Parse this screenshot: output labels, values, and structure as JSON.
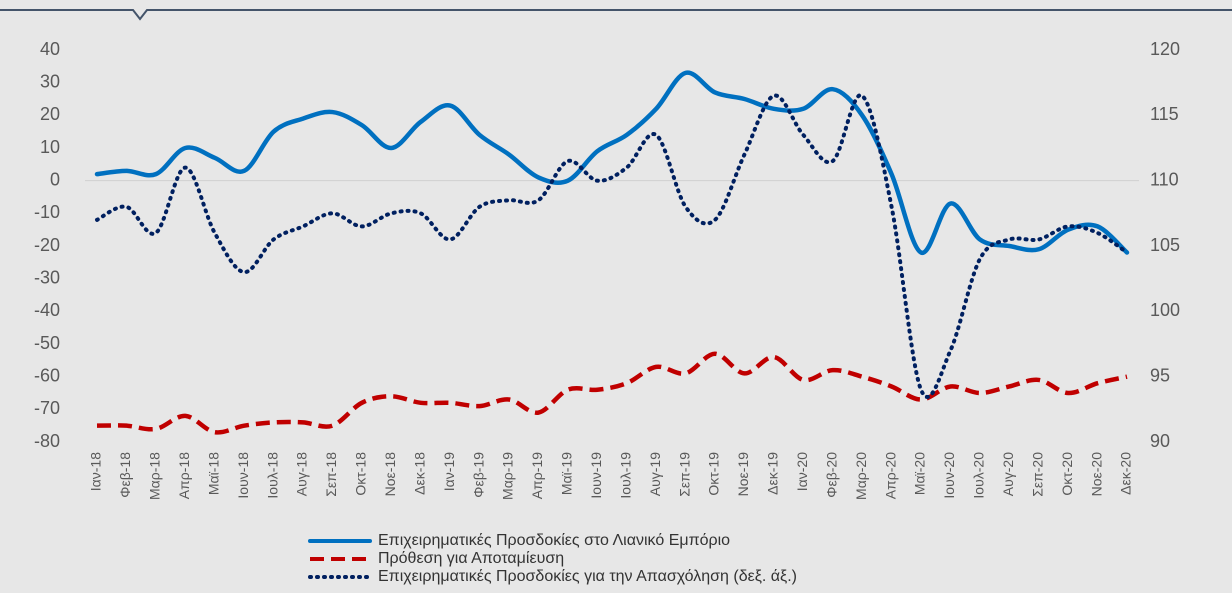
{
  "chart_data": {
    "type": "line",
    "categories": [
      "Ιαν-18",
      "Φεβ-18",
      "Μαρ-18",
      "Απρ-18",
      "Μαϊ-18",
      "Ιουν-18",
      "Ιουλ-18",
      "Αυγ-18",
      "Σεπ-18",
      "Οκτ-18",
      "Νοε-18",
      "Δεκ-18",
      "Ιαν-19",
      "Φεβ-19",
      "Μαρ-19",
      "Απρ-19",
      "Μαϊ-19",
      "Ιουν-19",
      "Ιουλ-19",
      "Αυγ-19",
      "Σεπ-19",
      "Οκτ-19",
      "Νοε-19",
      "Δεκ-19",
      "Ιαν-20",
      "Φεβ-20",
      "Μαρ-20",
      "Απρ-20",
      "Μαϊ-20",
      "Ιουν-20",
      "Ιουλ-20",
      "Αυγ-20",
      "Σεπ-20",
      "Οκτ-20",
      "Νοε-20",
      "Δεκ-20"
    ],
    "series": [
      {
        "name": "Επιχειρηματικές Προσδοκίες στο Λιανικό Εμπόριο",
        "color": "#0070c0",
        "style": "solid",
        "values": [
          2,
          3,
          2,
          10,
          7,
          3,
          15,
          19,
          21,
          17,
          10,
          18,
          23,
          14,
          8,
          1,
          0,
          9,
          14,
          22,
          33,
          27,
          25,
          22,
          22,
          28,
          20,
          2,
          -22,
          -7,
          -18,
          -20,
          -21,
          -15,
          -14,
          -22
        ]
      },
      {
        "name": "Πρόθεση για Αποταμίευση",
        "color": "#c00000",
        "style": "dashed",
        "values": [
          -75,
          -75,
          -76,
          -72,
          -77,
          -75,
          -74,
          -74,
          -75,
          -68,
          -66,
          -68,
          -68,
          -69,
          -67,
          -71,
          -64,
          -64,
          -62,
          -57,
          -59,
          -53,
          -59,
          -54,
          -61,
          -58,
          -60,
          -63,
          -67,
          -63,
          -65,
          -63,
          -61,
          -65,
          -62,
          -60
        ]
      },
      {
        "name": "Επιχειρηματικές Προσδοκίες για την Απασχόληση (δεξ. άξ.)",
        "color": "#002060",
        "style": "dotted",
        "axis": "y2",
        "values": [
          107,
          108,
          106,
          111,
          106,
          103,
          105.5,
          106.5,
          107.5,
          106.5,
          107.5,
          107.5,
          105.5,
          108,
          108.5,
          108.5,
          111.5,
          110,
          111,
          113.5,
          108,
          107,
          112,
          116.5,
          113.5,
          111.5,
          116.5,
          108,
          94,
          97,
          104,
          105.5,
          105.5,
          106.5,
          106,
          104.5
        ]
      }
    ],
    "ylim": [
      -80,
      40
    ],
    "yticks": [
      -80,
      -70,
      -60,
      -50,
      -40,
      -30,
      -20,
      -10,
      0,
      10,
      20,
      30,
      40
    ],
    "y2lim": [
      90,
      120
    ],
    "y2ticks": [
      90,
      95,
      100,
      105,
      110,
      115,
      120
    ],
    "legend": "bottom"
  }
}
